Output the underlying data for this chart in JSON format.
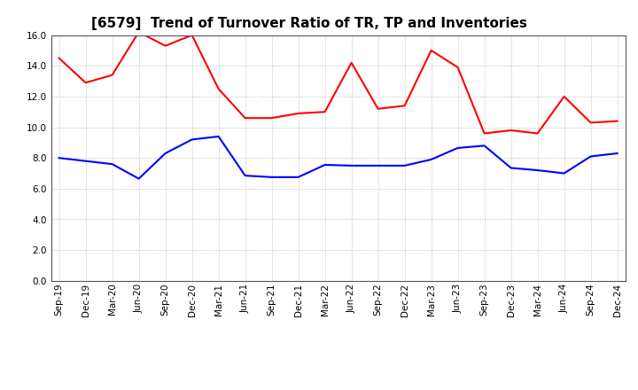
{
  "title": "[6579]  Trend of Turnover Ratio of TR, TP and Inventories",
  "x_labels": [
    "Sep-19",
    "Dec-19",
    "Mar-20",
    "Jun-20",
    "Sep-20",
    "Dec-20",
    "Mar-21",
    "Jun-21",
    "Sep-21",
    "Dec-21",
    "Mar-22",
    "Jun-22",
    "Sep-22",
    "Dec-22",
    "Mar-23",
    "Jun-23",
    "Sep-23",
    "Dec-23",
    "Mar-24",
    "Jun-24",
    "Sep-24",
    "Dec-24"
  ],
  "trade_receivables": [
    14.5,
    12.9,
    13.4,
    16.2,
    15.3,
    16.0,
    12.5,
    10.6,
    10.6,
    10.9,
    11.0,
    14.2,
    11.2,
    11.4,
    15.0,
    13.9,
    9.6,
    9.8,
    9.6,
    12.0,
    10.3,
    10.4
  ],
  "trade_payables": [
    8.0,
    7.8,
    7.6,
    6.65,
    8.3,
    9.2,
    9.4,
    6.85,
    6.75,
    6.75,
    7.55,
    7.5,
    7.5,
    7.5,
    7.9,
    8.65,
    8.8,
    7.35,
    7.2,
    7.0,
    8.1,
    8.3
  ],
  "inventories": [],
  "tr_color": "#ff0000",
  "tp_color": "#0000ff",
  "inv_color": "#008000",
  "ylim": [
    0.0,
    16.0
  ],
  "yticks": [
    0.0,
    2.0,
    4.0,
    6.0,
    8.0,
    10.0,
    12.0,
    14.0,
    16.0
  ],
  "bg_color": "#ffffff",
  "grid_color": "#999999",
  "title_fontsize": 11,
  "legend_fontsize": 9,
  "tick_fontsize": 7.5
}
